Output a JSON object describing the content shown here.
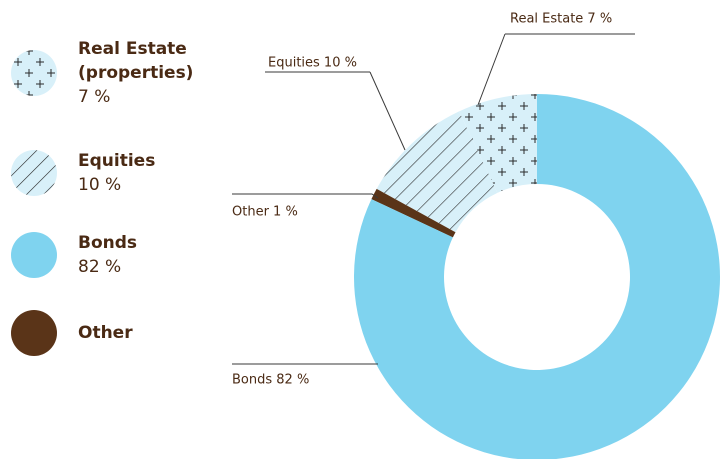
{
  "chart_data": {
    "type": "donut",
    "categories": [
      "Real Estate (properties)",
      "Equities",
      "Other",
      "Bonds"
    ],
    "values": [
      7,
      10,
      1,
      82
    ],
    "value_labels": [
      "7 %",
      "10 %",
      null,
      "82 %"
    ],
    "slice_labels": [
      "Real Estate  7 %",
      "Equities 10 %",
      "Other 1 %",
      "Bonds 82 %"
    ],
    "colors": [
      "#d8f0f9",
      "#d8f0f9",
      "#5a3418",
      "#7fd3ef"
    ],
    "patterns": [
      "plus",
      "hatch",
      null,
      null
    ]
  }
}
